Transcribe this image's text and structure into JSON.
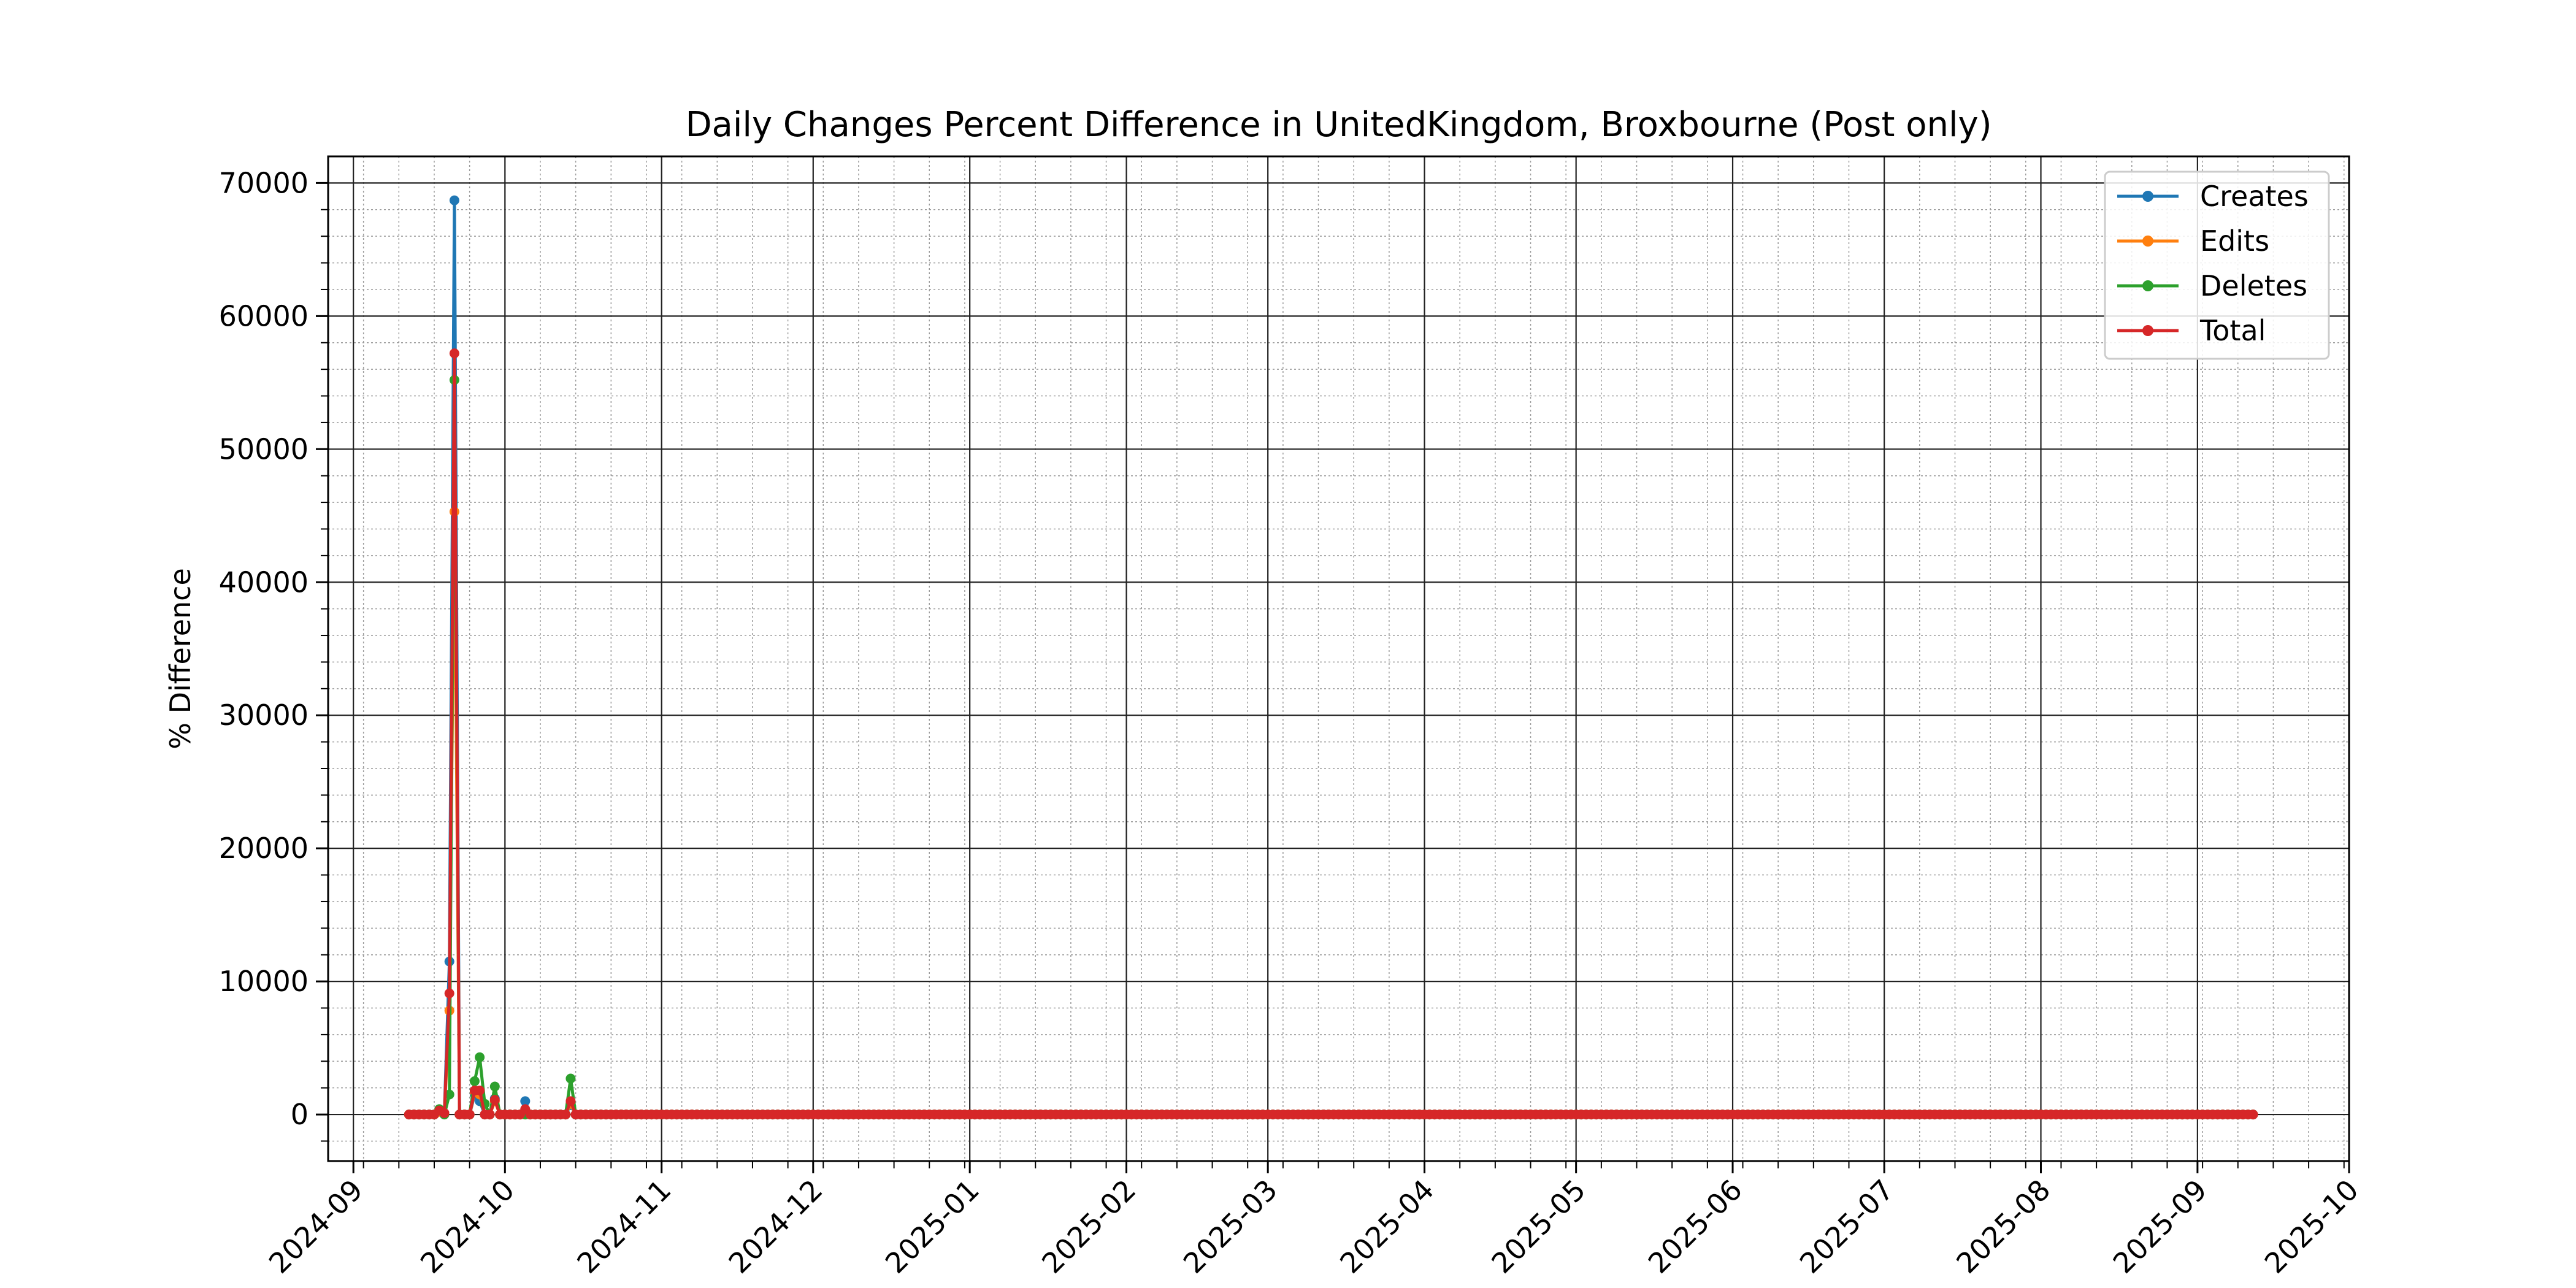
{
  "chart_data": {
    "type": "line",
    "title": "Daily Changes Percent Difference in UnitedKingdom, Broxbourne (Post only)",
    "xlabel": "",
    "ylabel": "% Difference",
    "xlim": [
      "2024-08-27",
      "2025-10-01"
    ],
    "ylim": [
      -3500,
      72000
    ],
    "x_ticks": [
      "2024-09",
      "2024-10",
      "2024-11",
      "2024-12",
      "2025-01",
      "2025-02",
      "2025-03",
      "2025-04",
      "2025-05",
      "2025-06",
      "2025-07",
      "2025-08",
      "2025-09",
      "2025-10"
    ],
    "y_ticks": [
      0,
      10000,
      20000,
      30000,
      40000,
      50000,
      60000,
      70000
    ],
    "grid": true,
    "minor_grid": true,
    "legend_position": "top-right",
    "marker": "circle",
    "x_range": [
      "2024-09-12",
      "2025-09-12"
    ],
    "baseline_value": 0,
    "series": [
      {
        "name": "Creates",
        "color": "#1f77b4",
        "points": [
          [
            "2024-09-12",
            0
          ],
          [
            "2024-09-15",
            0
          ],
          [
            "2024-09-18",
            300
          ],
          [
            "2024-09-19",
            100
          ],
          [
            "2024-09-20",
            11500
          ],
          [
            "2024-09-21",
            68700
          ],
          [
            "2024-09-22",
            0
          ],
          [
            "2024-09-25",
            1500
          ],
          [
            "2024-09-26",
            1000
          ],
          [
            "2024-09-29",
            1200
          ],
          [
            "2024-09-30",
            0
          ],
          [
            "2024-10-05",
            1000
          ],
          [
            "2024-10-06",
            0
          ],
          [
            "2024-10-14",
            700
          ],
          [
            "2024-10-15",
            0
          ]
        ]
      },
      {
        "name": "Edits",
        "color": "#ff7f0e",
        "points": [
          [
            "2024-09-12",
            0
          ],
          [
            "2024-09-15",
            0
          ],
          [
            "2024-09-18",
            200
          ],
          [
            "2024-09-19",
            100
          ],
          [
            "2024-09-20",
            7800
          ],
          [
            "2024-09-21",
            45300
          ],
          [
            "2024-09-22",
            0
          ],
          [
            "2024-09-25",
            1700
          ],
          [
            "2024-09-26",
            1500
          ],
          [
            "2024-09-29",
            1000
          ],
          [
            "2024-09-30",
            0
          ],
          [
            "2024-10-14",
            800
          ],
          [
            "2024-10-15",
            0
          ]
        ]
      },
      {
        "name": "Deletes",
        "color": "#2ca02c",
        "points": [
          [
            "2024-09-12",
            0
          ],
          [
            "2024-09-15",
            0
          ],
          [
            "2024-09-18",
            400
          ],
          [
            "2024-09-20",
            1500
          ],
          [
            "2024-09-21",
            55200
          ],
          [
            "2024-09-22",
            0
          ],
          [
            "2024-09-25",
            2500
          ],
          [
            "2024-09-26",
            4300
          ],
          [
            "2024-09-27",
            800
          ],
          [
            "2024-09-29",
            2100
          ],
          [
            "2024-09-30",
            0
          ],
          [
            "2024-10-14",
            2700
          ],
          [
            "2024-10-15",
            0
          ]
        ]
      },
      {
        "name": "Total",
        "color": "#d62728",
        "points": [
          [
            "2024-09-12",
            0
          ],
          [
            "2024-09-15",
            0
          ],
          [
            "2024-09-18",
            300
          ],
          [
            "2024-09-19",
            100
          ],
          [
            "2024-09-20",
            9100
          ],
          [
            "2024-09-21",
            57200
          ],
          [
            "2024-09-22",
            0
          ],
          [
            "2024-09-25",
            1800
          ],
          [
            "2024-09-26",
            1800
          ],
          [
            "2024-09-29",
            1100
          ],
          [
            "2024-09-30",
            0
          ],
          [
            "2024-10-05",
            400
          ],
          [
            "2024-10-06",
            0
          ],
          [
            "2024-10-14",
            1000
          ],
          [
            "2024-10-15",
            0
          ]
        ]
      }
    ]
  }
}
